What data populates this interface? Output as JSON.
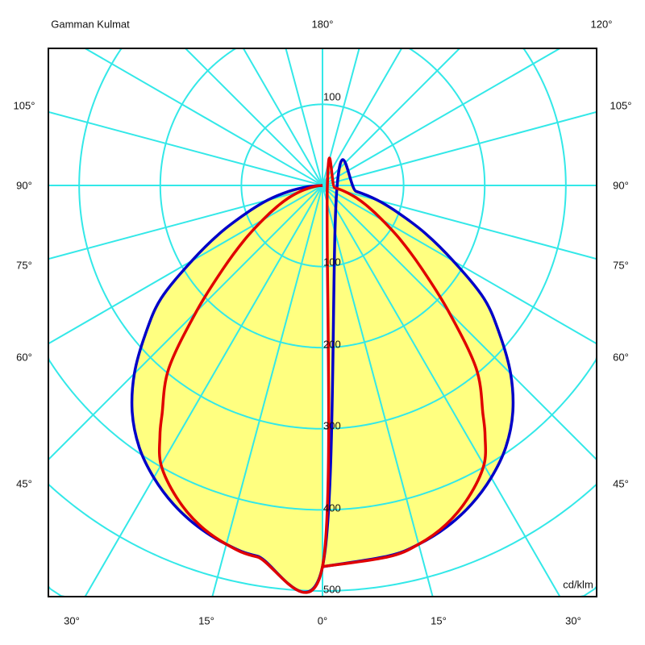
{
  "chart_data": {
    "type": "polar",
    "title": "Gamman Kulmat",
    "unit_label": "cd/klm",
    "radial_ticks_lower": [
      100,
      200,
      300,
      400,
      500
    ],
    "radial_tick_upper": 100,
    "angle_step_deg": 15,
    "angle_labels": {
      "top": [
        "180°",
        "120°"
      ],
      "left": [
        "105°",
        "90°",
        "75°",
        "60°",
        "45°"
      ],
      "right": [
        "105°",
        "90°",
        "75°",
        "60°",
        "45°"
      ],
      "bottom": [
        "30°",
        "15°",
        "0°",
        "15°",
        "30°"
      ]
    },
    "grid": true,
    "series": [
      {
        "color": "#0000C8",
        "angles": [
          0,
          10,
          15,
          20,
          25,
          30,
          35,
          40,
          45,
          50,
          55,
          60,
          65,
          70,
          75,
          80,
          85,
          90
        ],
        "values": [
          470,
          464,
          458,
          448,
          434,
          416,
          394,
          365,
          328,
          285,
          243,
          186,
          140,
          100,
          70,
          42,
          18,
          0
        ]
      },
      {
        "color": "#E00000",
        "angles": [
          0,
          10,
          15,
          20,
          25,
          30,
          33,
          35,
          40,
          45,
          50,
          55,
          60,
          65,
          70,
          75,
          80,
          85,
          90
        ],
        "values": [
          470,
          465,
          458,
          445,
          425,
          398,
          368,
          345,
          295,
          220,
          160,
          118,
          85,
          62,
          44,
          28,
          15,
          6,
          0
        ]
      }
    ],
    "fill_color": "#FFFF80",
    "grid_color": "#33E8E8"
  }
}
